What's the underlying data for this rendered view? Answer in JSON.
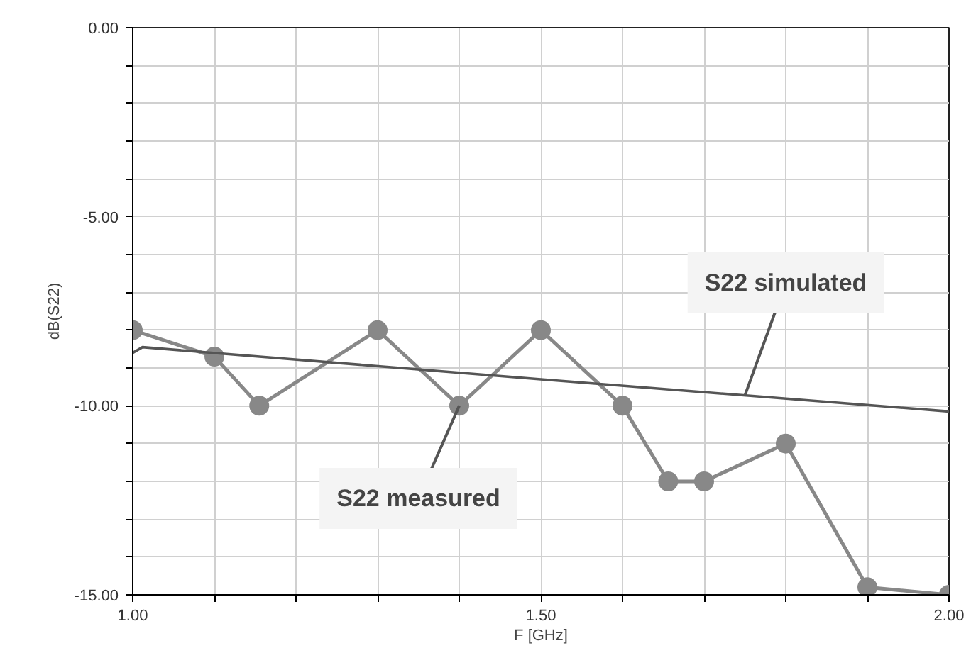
{
  "chart_data": {
    "type": "line",
    "xlabel": "F [GHz]",
    "ylabel": "dB(S22)",
    "xlim": [
      1.0,
      2.0
    ],
    "ylim": [
      -15.0,
      0.0
    ],
    "xticks": [
      {
        "value": 1.0,
        "label": "1.00"
      },
      {
        "value": 1.1,
        "label": null
      },
      {
        "value": 1.2,
        "label": null
      },
      {
        "value": 1.3,
        "label": null
      },
      {
        "value": 1.4,
        "label": null
      },
      {
        "value": 1.5,
        "label": "1.50"
      },
      {
        "value": 1.6,
        "label": null
      },
      {
        "value": 1.7,
        "label": null
      },
      {
        "value": 1.8,
        "label": null
      },
      {
        "value": 1.9,
        "label": null
      },
      {
        "value": 2.0,
        "label": "2.00"
      }
    ],
    "yticks": [
      {
        "value": -15,
        "label": "-15.00"
      },
      {
        "value": -14,
        "label": null
      },
      {
        "value": -13,
        "label": null
      },
      {
        "value": -12,
        "label": null
      },
      {
        "value": -11,
        "label": null
      },
      {
        "value": -10,
        "label": "-10.00"
      },
      {
        "value": -9,
        "label": null
      },
      {
        "value": -8,
        "label": null
      },
      {
        "value": -7,
        "label": null
      },
      {
        "value": -6,
        "label": null
      },
      {
        "value": -5,
        "label": "-5.00"
      },
      {
        "value": -4,
        "label": null
      },
      {
        "value": -3,
        "label": null
      },
      {
        "value": -2,
        "label": null
      },
      {
        "value": -1,
        "label": null
      },
      {
        "value": 0,
        "label": "0.00"
      }
    ],
    "grid": true,
    "series": [
      {
        "name": "S22 measured",
        "color": "#888888",
        "marker": "circle",
        "x": [
          1.0,
          1.1,
          1.155,
          1.3,
          1.4,
          1.5,
          1.6,
          1.656,
          1.7,
          1.8,
          1.9,
          2.0
        ],
        "values": [
          -8.0,
          -8.7,
          -10.0,
          -8.0,
          -10.0,
          -8.0,
          -10.0,
          -12.0,
          -12.0,
          -11.0,
          -14.8,
          -15.0
        ]
      },
      {
        "name": "S22 simulated",
        "color": "#555555",
        "marker": "none",
        "x": [
          1.0,
          1.012,
          1.5,
          2.0
        ],
        "values": [
          -8.6,
          -8.45,
          -9.3,
          -10.15
        ]
      }
    ]
  }
}
